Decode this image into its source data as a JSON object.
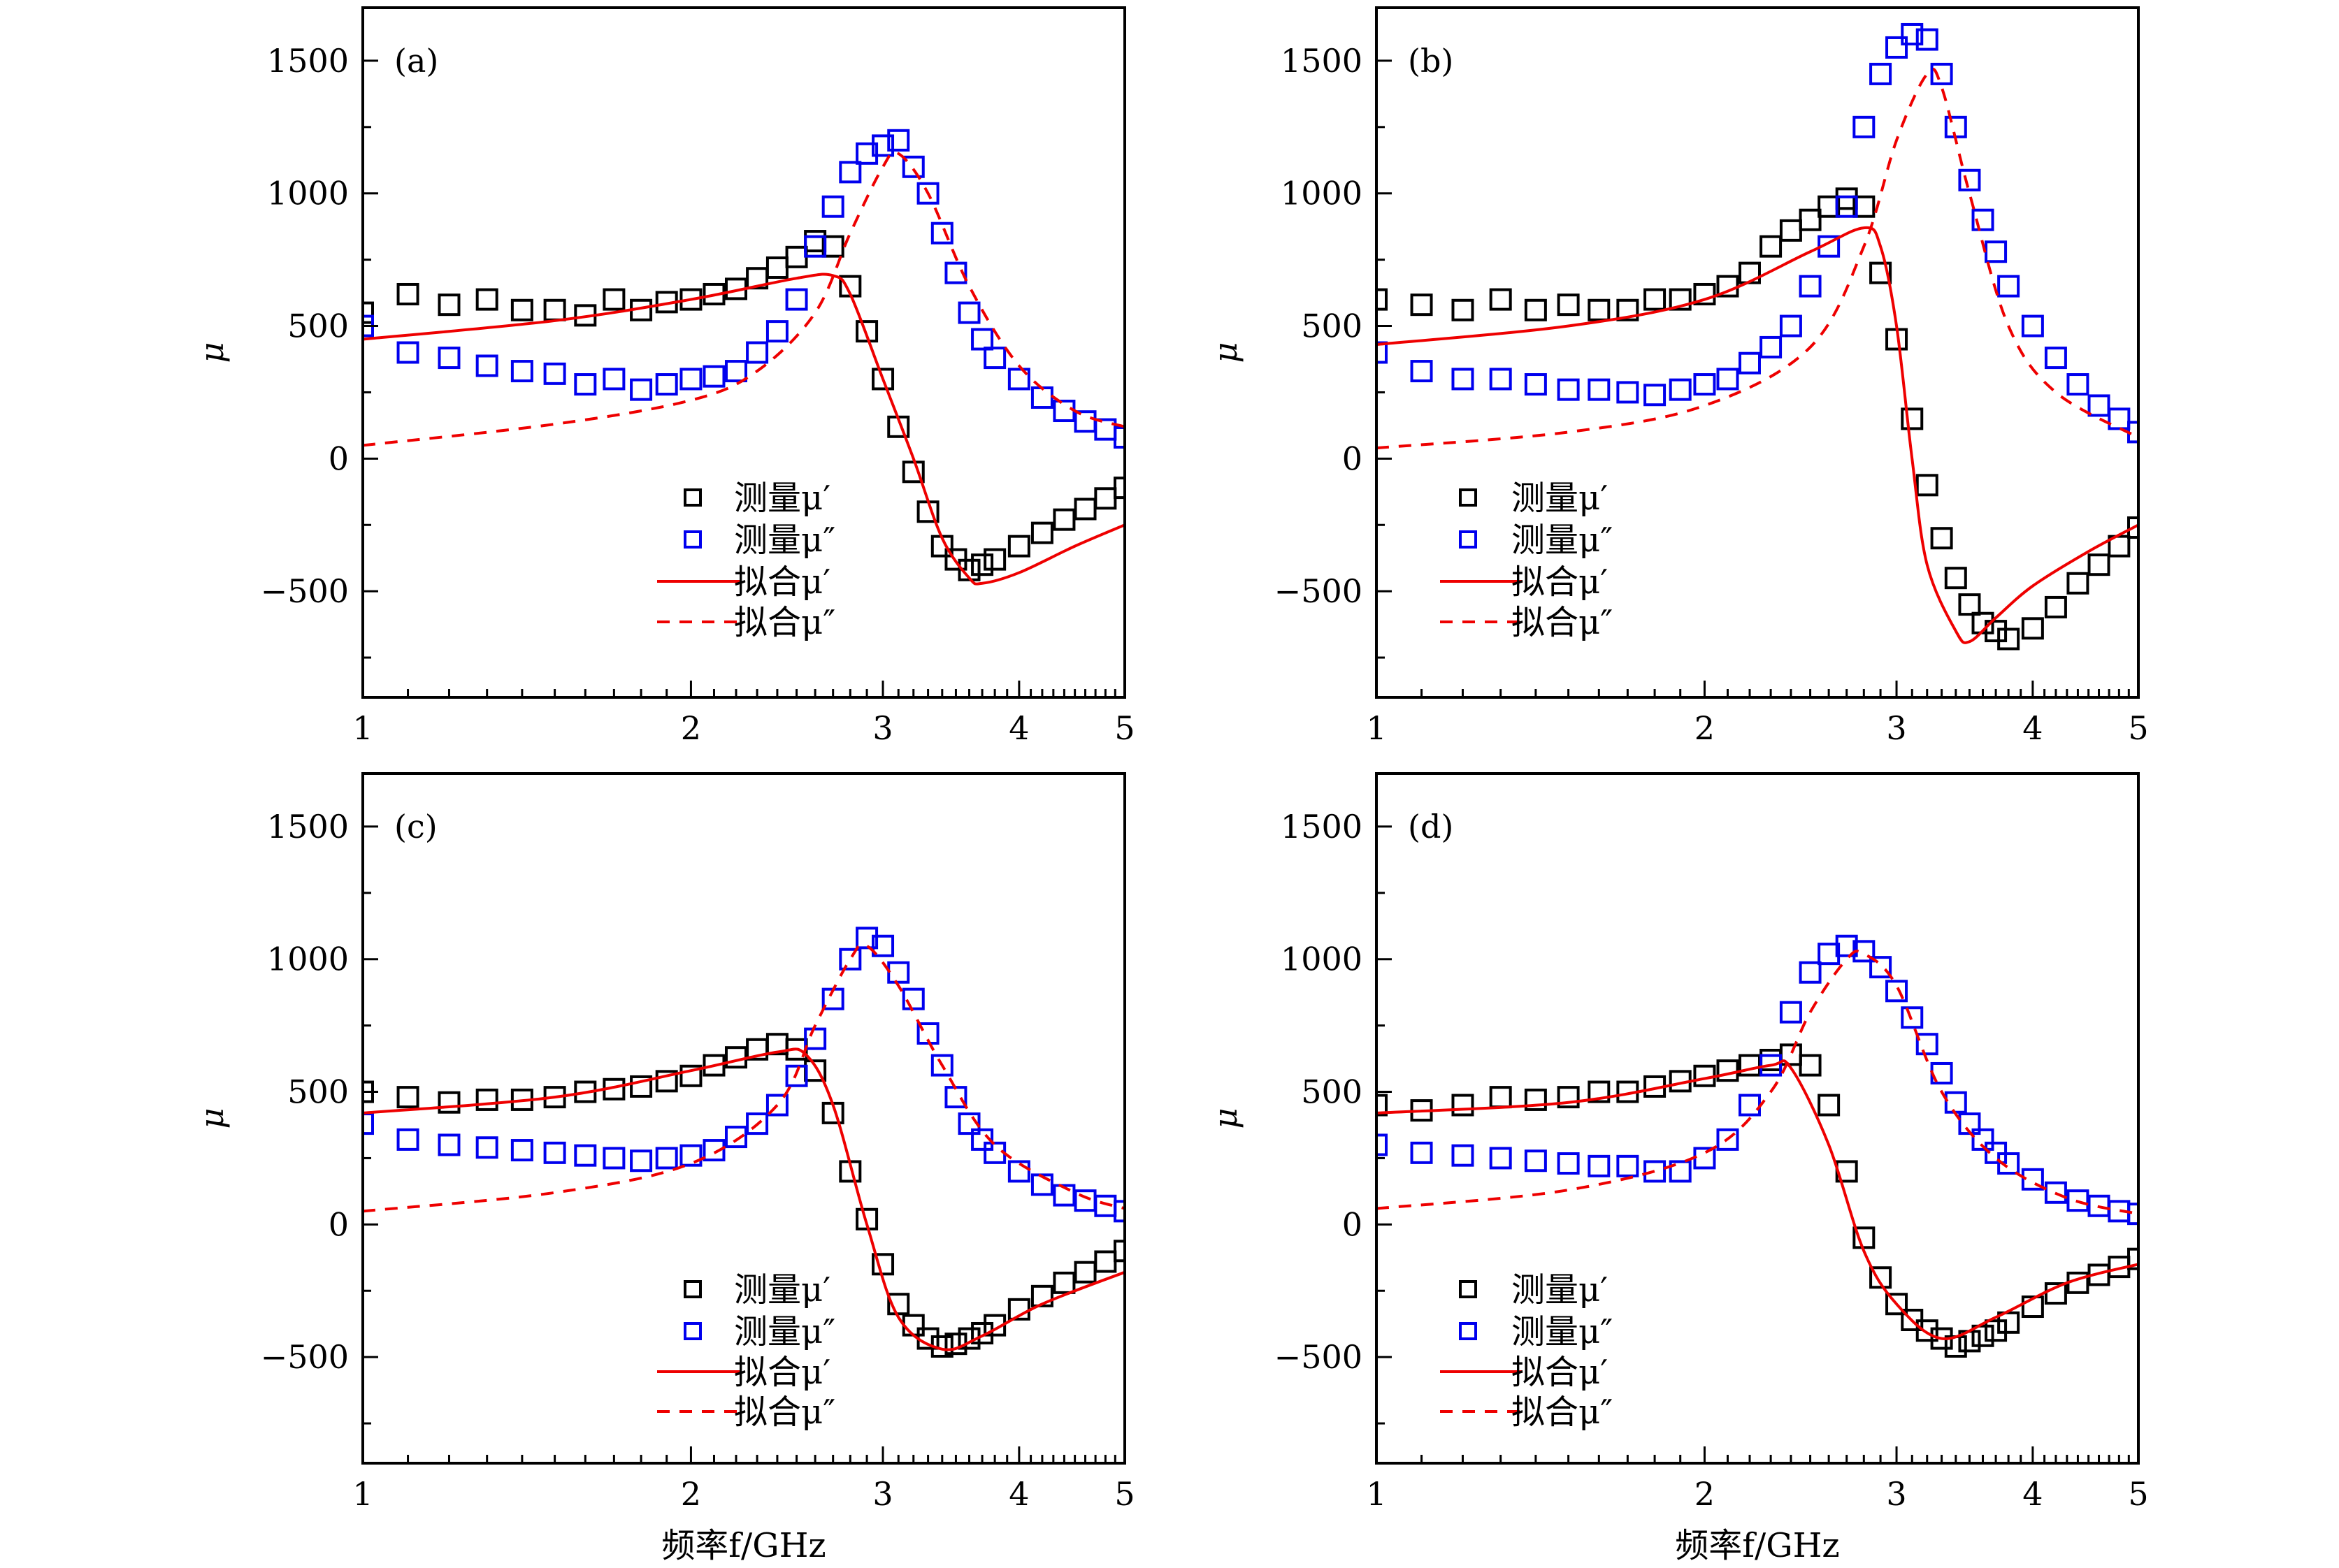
{
  "figure": {
    "xlabel": "频率f/GHz",
    "ylabel": "μ"
  },
  "chart_data": [
    {
      "type": "scatter",
      "panel_label": "(a)",
      "xscale": "log",
      "xlim": [
        1,
        5
      ],
      "ylim": [
        -900,
        1700
      ],
      "xticks": [
        1,
        2,
        3,
        4,
        5
      ],
      "yticks": [
        -500,
        0,
        500,
        1000,
        1500
      ],
      "ytick_labels": [
        "−500",
        "0",
        "500",
        "1000",
        "1500"
      ],
      "legend": {
        "placement": "lower-center",
        "labels": [
          "测量μ′",
          "测量μ″",
          "拟合μ′",
          "拟合μ″"
        ]
      },
      "x_measured": [
        1.0,
        1.1,
        1.2,
        1.3,
        1.4,
        1.5,
        1.6,
        1.7,
        1.8,
        1.9,
        2.0,
        2.1,
        2.2,
        2.3,
        2.4,
        2.5,
        2.6,
        2.7,
        2.8,
        2.9,
        3.0,
        3.1,
        3.2,
        3.3,
        3.4,
        3.5,
        3.6,
        3.7,
        3.8,
        4.0,
        4.2,
        4.4,
        4.6,
        4.8,
        5.0
      ],
      "series": [
        {
          "name": "测量μ′",
          "kind": "measured",
          "color": "#000000",
          "y": [
            550,
            620,
            580,
            600,
            560,
            560,
            540,
            600,
            560,
            590,
            600,
            620,
            640,
            680,
            720,
            760,
            820,
            800,
            650,
            480,
            300,
            120,
            -50,
            -200,
            -330,
            -380,
            -420,
            -400,
            -380,
            -330,
            -280,
            -230,
            -190,
            -150,
            -110
          ]
        },
        {
          "name": "测量μ″",
          "kind": "measured",
          "color": "#0000ee",
          "y": [
            500,
            400,
            380,
            350,
            330,
            320,
            280,
            300,
            260,
            280,
            300,
            310,
            330,
            400,
            480,
            600,
            800,
            950,
            1080,
            1150,
            1180,
            1200,
            1100,
            1000,
            850,
            700,
            550,
            450,
            380,
            300,
            230,
            180,
            140,
            110,
            80
          ]
        },
        {
          "name": "拟合μ′",
          "kind": "fit-solid",
          "color": "#ee0000",
          "x": [
            1,
            1.5,
            2,
            2.5,
            2.7,
            2.8,
            3.0,
            3.2,
            3.4,
            3.6,
            3.7,
            4.0,
            4.5,
            5
          ],
          "y": [
            450,
            520,
            600,
            680,
            690,
            620,
            300,
            0,
            -300,
            -450,
            -470,
            -430,
            -330,
            -250
          ]
        },
        {
          "name": "拟合μ″",
          "kind": "fit-dashed",
          "color": "#ee0000",
          "x": [
            1,
            1.5,
            2,
            2.3,
            2.6,
            2.8,
            3.0,
            3.1,
            3.3,
            3.6,
            4.0,
            4.5,
            5
          ],
          "y": [
            50,
            130,
            220,
            330,
            550,
            850,
            1100,
            1150,
            1000,
            650,
            350,
            180,
            120
          ]
        }
      ]
    },
    {
      "type": "scatter",
      "panel_label": "(b)",
      "xscale": "log",
      "xlim": [
        1,
        5
      ],
      "ylim": [
        -900,
        1700
      ],
      "xticks": [
        1,
        2,
        3,
        4,
        5
      ],
      "yticks": [
        -500,
        0,
        500,
        1000,
        1500
      ],
      "ytick_labels": [
        "−500",
        "0",
        "500",
        "1000",
        "1500"
      ],
      "legend": {
        "placement": "lower-left",
        "labels": [
          "测量μ′",
          "测量μ″",
          "拟合μ′",
          "拟合μ″"
        ]
      },
      "x_measured": [
        1.0,
        1.1,
        1.2,
        1.3,
        1.4,
        1.5,
        1.6,
        1.7,
        1.8,
        1.9,
        2.0,
        2.1,
        2.2,
        2.3,
        2.4,
        2.5,
        2.6,
        2.7,
        2.8,
        2.9,
        3.0,
        3.1,
        3.2,
        3.3,
        3.4,
        3.5,
        3.6,
        3.7,
        3.8,
        4.0,
        4.2,
        4.4,
        4.6,
        4.8,
        5.0
      ],
      "series": [
        {
          "name": "测量μ′",
          "kind": "measured",
          "color": "#000000",
          "y": [
            600,
            580,
            560,
            600,
            560,
            580,
            560,
            560,
            600,
            600,
            620,
            650,
            700,
            800,
            860,
            900,
            950,
            980,
            950,
            700,
            450,
            150,
            -100,
            -300,
            -450,
            -550,
            -620,
            -650,
            -680,
            -640,
            -560,
            -470,
            -400,
            -330,
            -260
          ]
        },
        {
          "name": "测量μ″",
          "kind": "measured",
          "color": "#0000ee",
          "y": [
            400,
            330,
            300,
            300,
            280,
            260,
            260,
            250,
            240,
            260,
            280,
            300,
            360,
            420,
            500,
            650,
            800,
            950,
            1250,
            1450,
            1550,
            1600,
            1580,
            1450,
            1250,
            1050,
            900,
            780,
            650,
            500,
            380,
            280,
            200,
            150,
            100
          ]
        },
        {
          "name": "拟合μ′",
          "kind": "fit-solid",
          "color": "#ee0000",
          "x": [
            1,
            1.5,
            2,
            2.5,
            2.8,
            2.9,
            3.0,
            3.1,
            3.2,
            3.4,
            3.5,
            3.7,
            4.0,
            4.5,
            5
          ],
          "y": [
            430,
            500,
            600,
            780,
            870,
            800,
            500,
            0,
            -400,
            -650,
            -690,
            -600,
            -480,
            -350,
            -250
          ]
        },
        {
          "name": "拟合μ″",
          "kind": "fit-dashed",
          "color": "#ee0000",
          "x": [
            1,
            1.5,
            2,
            2.5,
            2.8,
            3.0,
            3.2,
            3.3,
            3.5,
            3.8,
            4.2,
            5
          ],
          "y": [
            40,
            100,
            200,
            420,
            800,
            1200,
            1450,
            1400,
            1000,
            500,
            250,
            80
          ]
        }
      ]
    },
    {
      "type": "scatter",
      "panel_label": "(c)",
      "xscale": "log",
      "xlim": [
        1,
        5
      ],
      "ylim": [
        -900,
        1700
      ],
      "xticks": [
        1,
        2,
        3,
        4,
        5
      ],
      "yticks": [
        -500,
        0,
        500,
        1000,
        1500
      ],
      "ytick_labels": [
        "−500",
        "0",
        "500",
        "1000",
        "1500"
      ],
      "legend": {
        "placement": "lower-center",
        "labels": [
          "测量μ′",
          "测量μ″",
          "拟合μ′",
          "拟合μ″"
        ]
      },
      "x_measured": [
        1.0,
        1.1,
        1.2,
        1.3,
        1.4,
        1.5,
        1.6,
        1.7,
        1.8,
        1.9,
        2.0,
        2.1,
        2.2,
        2.3,
        2.4,
        2.5,
        2.6,
        2.7,
        2.8,
        2.9,
        3.0,
        3.1,
        3.2,
        3.3,
        3.4,
        3.5,
        3.6,
        3.7,
        3.8,
        4.0,
        4.2,
        4.4,
        4.6,
        4.8,
        5.0
      ],
      "series": [
        {
          "name": "测量μ′",
          "kind": "measured",
          "color": "#000000",
          "y": [
            500,
            480,
            460,
            470,
            470,
            480,
            500,
            510,
            520,
            540,
            560,
            600,
            630,
            660,
            680,
            660,
            580,
            420,
            200,
            20,
            -150,
            -300,
            -380,
            -430,
            -460,
            -450,
            -430,
            -410,
            -380,
            -320,
            -270,
            -220,
            -180,
            -140,
            -100
          ]
        },
        {
          "name": "测量μ″",
          "kind": "measured",
          "color": "#0000ee",
          "y": [
            380,
            320,
            300,
            290,
            280,
            270,
            260,
            250,
            240,
            250,
            260,
            280,
            330,
            380,
            450,
            560,
            700,
            850,
            1000,
            1080,
            1050,
            950,
            850,
            720,
            600,
            480,
            380,
            320,
            270,
            200,
            150,
            110,
            90,
            70,
            50
          ]
        },
        {
          "name": "拟合μ′",
          "kind": "fit-solid",
          "color": "#ee0000",
          "x": [
            1,
            1.5,
            2,
            2.4,
            2.55,
            2.7,
            2.9,
            3.1,
            3.4,
            3.7,
            4.2,
            5
          ],
          "y": [
            420,
            480,
            580,
            650,
            640,
            450,
            0,
            -350,
            -470,
            -420,
            -300,
            -180
          ]
        },
        {
          "name": "拟合μ″",
          "kind": "fit-dashed",
          "color": "#ee0000",
          "x": [
            1,
            1.5,
            2,
            2.4,
            2.6,
            2.8,
            2.9,
            3.1,
            3.4,
            3.8,
            4.5,
            5
          ],
          "y": [
            50,
            120,
            230,
            450,
            750,
            1000,
            1050,
            900,
            600,
            300,
            120,
            60
          ]
        }
      ]
    },
    {
      "type": "scatter",
      "panel_label": "(d)",
      "xscale": "log",
      "xlim": [
        1,
        5
      ],
      "ylim": [
        -900,
        1700
      ],
      "xticks": [
        1,
        2,
        3,
        4,
        5
      ],
      "yticks": [
        -500,
        0,
        500,
        1000,
        1500
      ],
      "ytick_labels": [
        "−500",
        "0",
        "500",
        "1000",
        "1500"
      ],
      "legend": {
        "placement": "lower-left",
        "labels": [
          "测量μ′",
          "测量μ″",
          "拟合μ′",
          "拟合μ″"
        ]
      },
      "x_measured": [
        1.0,
        1.1,
        1.2,
        1.3,
        1.4,
        1.5,
        1.6,
        1.7,
        1.8,
        1.9,
        2.0,
        2.1,
        2.2,
        2.3,
        2.4,
        2.5,
        2.6,
        2.7,
        2.8,
        2.9,
        3.0,
        3.1,
        3.2,
        3.3,
        3.4,
        3.5,
        3.6,
        3.7,
        3.8,
        4.0,
        4.2,
        4.4,
        4.6,
        4.8,
        5.0
      ],
      "series": [
        {
          "name": "测量μ′",
          "kind": "measured",
          "color": "#000000",
          "y": [
            450,
            430,
            450,
            480,
            470,
            480,
            500,
            500,
            520,
            540,
            560,
            580,
            600,
            620,
            640,
            600,
            450,
            200,
            -50,
            -200,
            -300,
            -360,
            -400,
            -430,
            -460,
            -440,
            -420,
            -400,
            -370,
            -310,
            -260,
            -220,
            -190,
            -160,
            -130
          ]
        },
        {
          "name": "测量μ″",
          "kind": "measured",
          "color": "#0000ee",
          "y": [
            300,
            270,
            260,
            250,
            240,
            230,
            220,
            220,
            200,
            200,
            250,
            320,
            450,
            600,
            800,
            950,
            1020,
            1050,
            1030,
            970,
            880,
            780,
            680,
            570,
            460,
            380,
            320,
            270,
            230,
            170,
            120,
            90,
            70,
            50,
            40
          ]
        },
        {
          "name": "拟合μ′",
          "kind": "fit-solid",
          "color": "#ee0000",
          "x": [
            1,
            1.5,
            2,
            2.3,
            2.4,
            2.6,
            2.8,
            3.0,
            3.3,
            3.7,
            4.3,
            5
          ],
          "y": [
            420,
            460,
            550,
            600,
            590,
            300,
            -100,
            -300,
            -430,
            -350,
            -220,
            -150
          ]
        },
        {
          "name": "拟合μ″",
          "kind": "fit-dashed",
          "color": "#ee0000",
          "x": [
            1,
            1.5,
            2,
            2.3,
            2.5,
            2.7,
            2.8,
            3.0,
            3.3,
            3.7,
            4.3,
            5
          ],
          "y": [
            60,
            130,
            270,
            500,
            800,
            1000,
            1020,
            900,
            500,
            250,
            100,
            40
          ]
        }
      ]
    }
  ]
}
